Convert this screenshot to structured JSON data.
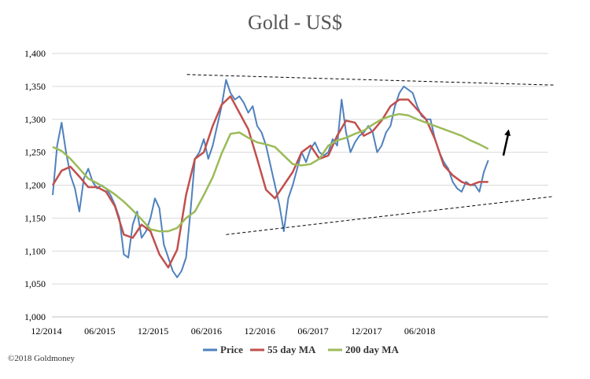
{
  "chart_data": {
    "type": "line",
    "title": "Gold - US$",
    "xlabel": "",
    "ylabel": "",
    "ylim": [
      1000,
      1400
    ],
    "yticks": [
      1000,
      1050,
      1100,
      1150,
      1200,
      1250,
      1300,
      1350,
      1400
    ],
    "ytick_labels": [
      "1,000",
      "1,050",
      "1,100",
      "1,150",
      "1,200",
      "1,250",
      "1,300",
      "1,350",
      "1,400"
    ],
    "xticks": [
      "12/2014",
      "06/2015",
      "12/2015",
      "06/2016",
      "12/2016",
      "06/2017",
      "12/2017",
      "06/2018"
    ],
    "xlim": [
      0,
      51
    ],
    "grid": "horizontal",
    "legend": "bottom",
    "series": [
      {
        "name": "Price",
        "color": "#4f81bd",
        "x": [
          0,
          0.5,
          1,
          1.5,
          2,
          2.5,
          3,
          3.5,
          4,
          4.5,
          5,
          5.5,
          6,
          6.5,
          7,
          7.5,
          8,
          8.5,
          9,
          9.5,
          10,
          10.5,
          11,
          11.5,
          12,
          12.5,
          13,
          13.5,
          14,
          14.5,
          15,
          15.5,
          16,
          16.5,
          17,
          17.5,
          18,
          18.5,
          19,
          19.5,
          20,
          20.5,
          21,
          21.5,
          22,
          22.5,
          23,
          23.5,
          24,
          24.5,
          25,
          25.5,
          26,
          26.5,
          27,
          27.5,
          28,
          28.5,
          29,
          29.5,
          30,
          30.5,
          31,
          31.5,
          32,
          32.5,
          33,
          33.5,
          34,
          34.5,
          35,
          35.5,
          36,
          36.5,
          37,
          37.5,
          38,
          38.5,
          39,
          39.5,
          40,
          40.5,
          41,
          41.5,
          42,
          42.5,
          43,
          43.5,
          44,
          44.5,
          45,
          45.5,
          46,
          46.5,
          47,
          47.5,
          48,
          48.5,
          49
        ],
        "values": [
          1185,
          1260,
          1295,
          1250,
          1215,
          1195,
          1160,
          1210,
          1225,
          1205,
          1195,
          1200,
          1195,
          1185,
          1170,
          1150,
          1095,
          1090,
          1140,
          1160,
          1120,
          1130,
          1150,
          1180,
          1165,
          1110,
          1090,
          1070,
          1060,
          1070,
          1090,
          1160,
          1240,
          1250,
          1270,
          1240,
          1260,
          1290,
          1320,
          1360,
          1340,
          1330,
          1335,
          1325,
          1310,
          1320,
          1290,
          1280,
          1260,
          1230,
          1200,
          1170,
          1130,
          1180,
          1200,
          1225,
          1250,
          1235,
          1255,
          1265,
          1250,
          1245,
          1250,
          1270,
          1260,
          1330,
          1280,
          1250,
          1265,
          1275,
          1280,
          1290,
          1280,
          1250,
          1260,
          1280,
          1290,
          1320,
          1340,
          1350,
          1345,
          1340,
          1320,
          1305,
          1300,
          1300,
          1270,
          1250,
          1235,
          1225,
          1205,
          1195,
          1190,
          1205,
          1200,
          1200,
          1190,
          1220,
          1238
        ]
      },
      {
        "name": "55 day MA",
        "color": "#c0504d",
        "x": [
          0,
          1,
          2,
          3,
          4,
          5,
          6,
          7,
          8,
          9,
          10,
          11,
          12,
          13,
          14,
          15,
          16,
          17,
          18,
          19,
          20,
          21,
          22,
          23,
          24,
          25,
          26,
          27,
          28,
          29,
          30,
          31,
          32,
          33,
          34,
          35,
          36,
          37,
          38,
          39,
          40,
          41,
          42,
          43,
          44,
          45,
          46,
          47,
          48,
          49
        ],
        "values": [
          1200,
          1222,
          1228,
          1213,
          1197,
          1197,
          1190,
          1168,
          1125,
          1120,
          1140,
          1130,
          1095,
          1075,
          1102,
          1185,
          1240,
          1250,
          1290,
          1322,
          1335,
          1310,
          1285,
          1240,
          1193,
          1180,
          1200,
          1220,
          1250,
          1260,
          1240,
          1245,
          1275,
          1298,
          1295,
          1275,
          1282,
          1298,
          1320,
          1330,
          1330,
          1315,
          1300,
          1270,
          1230,
          1215,
          1205,
          1200,
          1205,
          1205
        ]
      },
      {
        "name": "200 day MA",
        "color": "#9bbb59",
        "x": [
          0,
          1,
          2,
          3,
          4,
          5,
          6,
          7,
          8,
          9,
          10,
          11,
          12,
          13,
          14,
          15,
          16,
          17,
          18,
          19,
          20,
          21,
          22,
          23,
          24,
          25,
          26,
          27,
          28,
          29,
          30,
          31,
          32,
          33,
          34,
          35,
          36,
          37,
          38,
          39,
          40,
          41,
          42,
          43,
          44,
          45,
          46,
          47,
          48,
          49
        ],
        "values": [
          1258,
          1252,
          1240,
          1225,
          1210,
          1203,
          1195,
          1186,
          1175,
          1162,
          1148,
          1133,
          1130,
          1130,
          1135,
          1150,
          1160,
          1185,
          1212,
          1248,
          1278,
          1280,
          1272,
          1265,
          1262,
          1258,
          1245,
          1232,
          1230,
          1232,
          1240,
          1260,
          1268,
          1272,
          1278,
          1283,
          1292,
          1300,
          1305,
          1308,
          1306,
          1300,
          1295,
          1290,
          1285,
          1280,
          1275,
          1268,
          1262,
          1255
        ]
      }
    ],
    "annotations": [
      {
        "type": "dashed-trendline",
        "label": "",
        "from": [
          15.1,
          1368
        ],
        "to": [
          56.4,
          1352
        ]
      },
      {
        "type": "dashed-trendline",
        "label": "",
        "from": [
          19.5,
          1125
        ],
        "to": [
          56.4,
          1183
        ]
      },
      {
        "type": "arrow",
        "label": "",
        "from": [
          50.7,
          1245
        ],
        "to": [
          51.3,
          1285
        ]
      }
    ]
  },
  "legend_items": [
    {
      "label": "Price",
      "color": "#4f81bd"
    },
    {
      "label": "55 day MA",
      "color": "#c0504d"
    },
    {
      "label": "200 day MA",
      "color": "#9bbb59"
    }
  ],
  "credit": "©2018 Goldmoney"
}
